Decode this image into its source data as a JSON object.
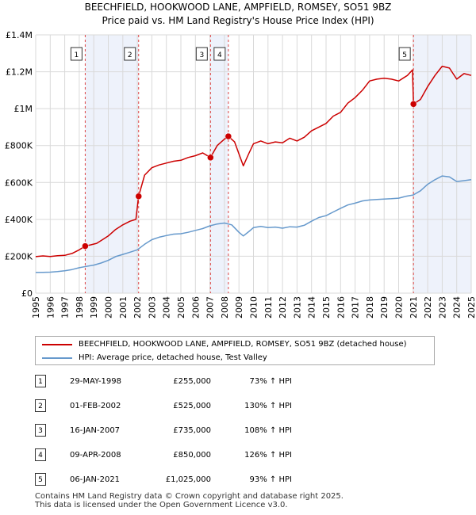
{
  "chart_data": {
    "type": "line",
    "title": "BEECHFIELD, HOOKWOOD LANE, AMPFIELD, ROMSEY, SO51 9BZ",
    "subtitle": "Price paid vs. HM Land Registry's House Price Index (HPI)",
    "xlim": [
      1995,
      2025
    ],
    "ylim": [
      0,
      1400000
    ],
    "y_ticks": [
      {
        "value": 0,
        "label": "£0"
      },
      {
        "value": 200000,
        "label": "£200K"
      },
      {
        "value": 400000,
        "label": "£400K"
      },
      {
        "value": 600000,
        "label": "£600K"
      },
      {
        "value": 800000,
        "label": "£800K"
      },
      {
        "value": 1000000,
        "label": "£1M"
      },
      {
        "value": 1200000,
        "label": "£1.2M"
      },
      {
        "value": 1400000,
        "label": "£1.4M"
      }
    ],
    "x_ticks": [
      "1995",
      "1996",
      "1997",
      "1998",
      "1999",
      "2000",
      "2001",
      "2002",
      "2003",
      "2004",
      "2005",
      "2006",
      "2007",
      "2008",
      "2009",
      "2010",
      "2011",
      "2012",
      "2013",
      "2014",
      "2015",
      "2016",
      "2017",
      "2018",
      "2019",
      "2020",
      "2021",
      "2022",
      "2023",
      "2024",
      "2025"
    ],
    "grid": true,
    "series": [
      {
        "name": "BEECHFIELD, HOOKWOOD LANE, AMPFIELD, ROMSEY, SO51 9BZ (detached house)",
        "color": "#cc0000",
        "points": [
          [
            1995.0,
            198000
          ],
          [
            1995.5,
            202000
          ],
          [
            1996.0,
            199000
          ],
          [
            1996.5,
            203000
          ],
          [
            1997.0,
            205000
          ],
          [
            1997.5,
            215000
          ],
          [
            1998.0,
            235000
          ],
          [
            1998.41,
            255000
          ],
          [
            1998.8,
            262000
          ],
          [
            1999.2,
            270000
          ],
          [
            1999.6,
            290000
          ],
          [
            2000.0,
            310000
          ],
          [
            2000.5,
            345000
          ],
          [
            2001.0,
            370000
          ],
          [
            2001.5,
            390000
          ],
          [
            2001.9,
            400000
          ],
          [
            2002.09,
            525000
          ],
          [
            2002.5,
            640000
          ],
          [
            2003.0,
            680000
          ],
          [
            2003.5,
            695000
          ],
          [
            2004.0,
            705000
          ],
          [
            2004.5,
            715000
          ],
          [
            2005.0,
            720000
          ],
          [
            2005.5,
            735000
          ],
          [
            2006.0,
            745000
          ],
          [
            2006.5,
            760000
          ],
          [
            2007.04,
            735000
          ],
          [
            2007.5,
            800000
          ],
          [
            2008.0,
            835000
          ],
          [
            2008.27,
            850000
          ],
          [
            2008.7,
            820000
          ],
          [
            2009.0,
            755000
          ],
          [
            2009.3,
            690000
          ],
          [
            2009.7,
            760000
          ],
          [
            2010.0,
            810000
          ],
          [
            2010.5,
            825000
          ],
          [
            2011.0,
            810000
          ],
          [
            2011.5,
            820000
          ],
          [
            2012.0,
            815000
          ],
          [
            2012.5,
            840000
          ],
          [
            2013.0,
            825000
          ],
          [
            2013.5,
            845000
          ],
          [
            2014.0,
            880000
          ],
          [
            2014.5,
            900000
          ],
          [
            2015.0,
            920000
          ],
          [
            2015.5,
            960000
          ],
          [
            2016.0,
            980000
          ],
          [
            2016.5,
            1030000
          ],
          [
            2017.0,
            1060000
          ],
          [
            2017.5,
            1100000
          ],
          [
            2018.0,
            1150000
          ],
          [
            2018.5,
            1160000
          ],
          [
            2019.0,
            1165000
          ],
          [
            2019.5,
            1160000
          ],
          [
            2020.0,
            1150000
          ],
          [
            2020.6,
            1180000
          ],
          [
            2020.95,
            1210000
          ],
          [
            2021.02,
            1025000
          ],
          [
            2021.5,
            1050000
          ],
          [
            2022.0,
            1120000
          ],
          [
            2022.5,
            1180000
          ],
          [
            2023.0,
            1230000
          ],
          [
            2023.5,
            1220000
          ],
          [
            2024.0,
            1160000
          ],
          [
            2024.5,
            1190000
          ],
          [
            2025.0,
            1180000
          ]
        ]
      },
      {
        "name": "HPI: Average price, detached house, Test Valley",
        "color": "#6699cc",
        "points": [
          [
            1995.0,
            112000
          ],
          [
            1995.5,
            113000
          ],
          [
            1996.0,
            114000
          ],
          [
            1996.5,
            117000
          ],
          [
            1997.0,
            121000
          ],
          [
            1997.5,
            128000
          ],
          [
            1998.0,
            138000
          ],
          [
            1998.5,
            145000
          ],
          [
            1999.0,
            152000
          ],
          [
            1999.5,
            163000
          ],
          [
            2000.0,
            178000
          ],
          [
            2000.5,
            198000
          ],
          [
            2001.0,
            210000
          ],
          [
            2001.5,
            222000
          ],
          [
            2002.0,
            235000
          ],
          [
            2002.5,
            265000
          ],
          [
            2003.0,
            290000
          ],
          [
            2003.5,
            303000
          ],
          [
            2004.0,
            312000
          ],
          [
            2004.5,
            320000
          ],
          [
            2005.0,
            322000
          ],
          [
            2005.5,
            330000
          ],
          [
            2006.0,
            340000
          ],
          [
            2006.5,
            350000
          ],
          [
            2007.0,
            365000
          ],
          [
            2007.5,
            375000
          ],
          [
            2008.0,
            380000
          ],
          [
            2008.5,
            370000
          ],
          [
            2009.0,
            330000
          ],
          [
            2009.3,
            310000
          ],
          [
            2009.7,
            335000
          ],
          [
            2010.0,
            355000
          ],
          [
            2010.5,
            362000
          ],
          [
            2011.0,
            355000
          ],
          [
            2011.5,
            358000
          ],
          [
            2012.0,
            352000
          ],
          [
            2012.5,
            360000
          ],
          [
            2013.0,
            358000
          ],
          [
            2013.5,
            368000
          ],
          [
            2014.0,
            390000
          ],
          [
            2014.5,
            410000
          ],
          [
            2015.0,
            420000
          ],
          [
            2015.5,
            440000
          ],
          [
            2016.0,
            460000
          ],
          [
            2016.5,
            478000
          ],
          [
            2017.0,
            488000
          ],
          [
            2017.5,
            500000
          ],
          [
            2018.0,
            505000
          ],
          [
            2018.5,
            508000
          ],
          [
            2019.0,
            510000
          ],
          [
            2019.5,
            512000
          ],
          [
            2020.0,
            515000
          ],
          [
            2020.5,
            525000
          ],
          [
            2021.0,
            532000
          ],
          [
            2021.5,
            555000
          ],
          [
            2022.0,
            590000
          ],
          [
            2022.5,
            615000
          ],
          [
            2023.0,
            635000
          ],
          [
            2023.5,
            630000
          ],
          [
            2024.0,
            605000
          ],
          [
            2024.5,
            610000
          ],
          [
            2025.0,
            615000
          ]
        ]
      }
    ],
    "sales": [
      {
        "n": "1",
        "x": 1998.41,
        "price": 255000
      },
      {
        "n": "2",
        "x": 2002.09,
        "price": 525000
      },
      {
        "n": "3",
        "x": 2007.04,
        "price": 735000
      },
      {
        "n": "4",
        "x": 2008.27,
        "price": 850000
      },
      {
        "n": "5",
        "x": 2021.02,
        "price": 1025000
      }
    ]
  },
  "legend": [
    {
      "label": "BEECHFIELD, HOOKWOOD LANE, AMPFIELD, ROMSEY, SO51 9BZ (detached house)",
      "color": "#cc0000"
    },
    {
      "label": "HPI: Average price, detached house, Test Valley",
      "color": "#6699cc"
    }
  ],
  "table": [
    {
      "n": "1",
      "date": "29-MAY-1998",
      "price": "£255,000",
      "hpi": "73% ↑ HPI"
    },
    {
      "n": "2",
      "date": "01-FEB-2002",
      "price": "£525,000",
      "hpi": "130% ↑ HPI"
    },
    {
      "n": "3",
      "date": "16-JAN-2007",
      "price": "£735,000",
      "hpi": "108% ↑ HPI"
    },
    {
      "n": "4",
      "date": "09-APR-2008",
      "price": "£850,000",
      "hpi": "126% ↑ HPI"
    },
    {
      "n": "5",
      "date": "06-JAN-2021",
      "price": "£1,025,000",
      "hpi": "93% ↑ HPI"
    }
  ],
  "footer": {
    "line1": "Contains HM Land Registry data © Crown copyright and database right 2025.",
    "line2": "This data is licensed under the Open Government Licence v3.0."
  },
  "colors": {
    "band": "#eef2fb",
    "vline": "#dd4444",
    "grid": "#d9d9d9"
  }
}
